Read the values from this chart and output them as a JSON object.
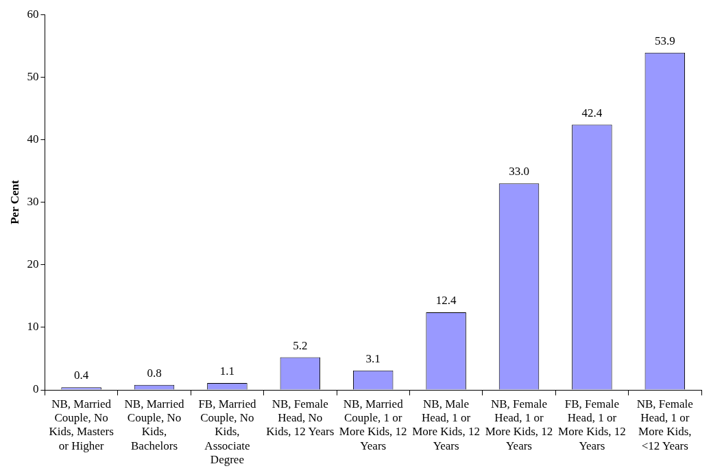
{
  "chart_data": {
    "type": "bar",
    "ylabel": "Per Cent",
    "categories": [
      "NB, Married Couple, No Kids, Masters or Higher",
      "NB, Married Couple, No Kids, Bachelors",
      "FB, Married Couple, No Kids, Associate Degree",
      "NB, Female Head, No Kids, 12 Years",
      "NB, Married Couple, 1 or More Kids, 12 Years",
      "NB, Male Head, 1 or More Kids, 12 Years",
      "NB, Female Head, 1 or More Kids, 12 Years",
      "FB, Female Head, 1 or More Kids, 12 Years",
      "NB, Female Head, 1 or More Kids, <12 Years"
    ],
    "values": [
      0.4,
      0.8,
      1.1,
      5.2,
      3.1,
      12.4,
      33.0,
      42.4,
      53.9
    ],
    "value_labels": [
      "0.4",
      "0.8",
      "1.1",
      "5.2",
      "3.1",
      "12.4",
      "33.0",
      "42.4",
      "53.9"
    ],
    "color": "#9999ff",
    "ylim": [
      0,
      60
    ],
    "yticks": [
      0,
      10,
      20,
      30,
      40,
      50,
      60
    ],
    "grid": false,
    "legend": false
  }
}
